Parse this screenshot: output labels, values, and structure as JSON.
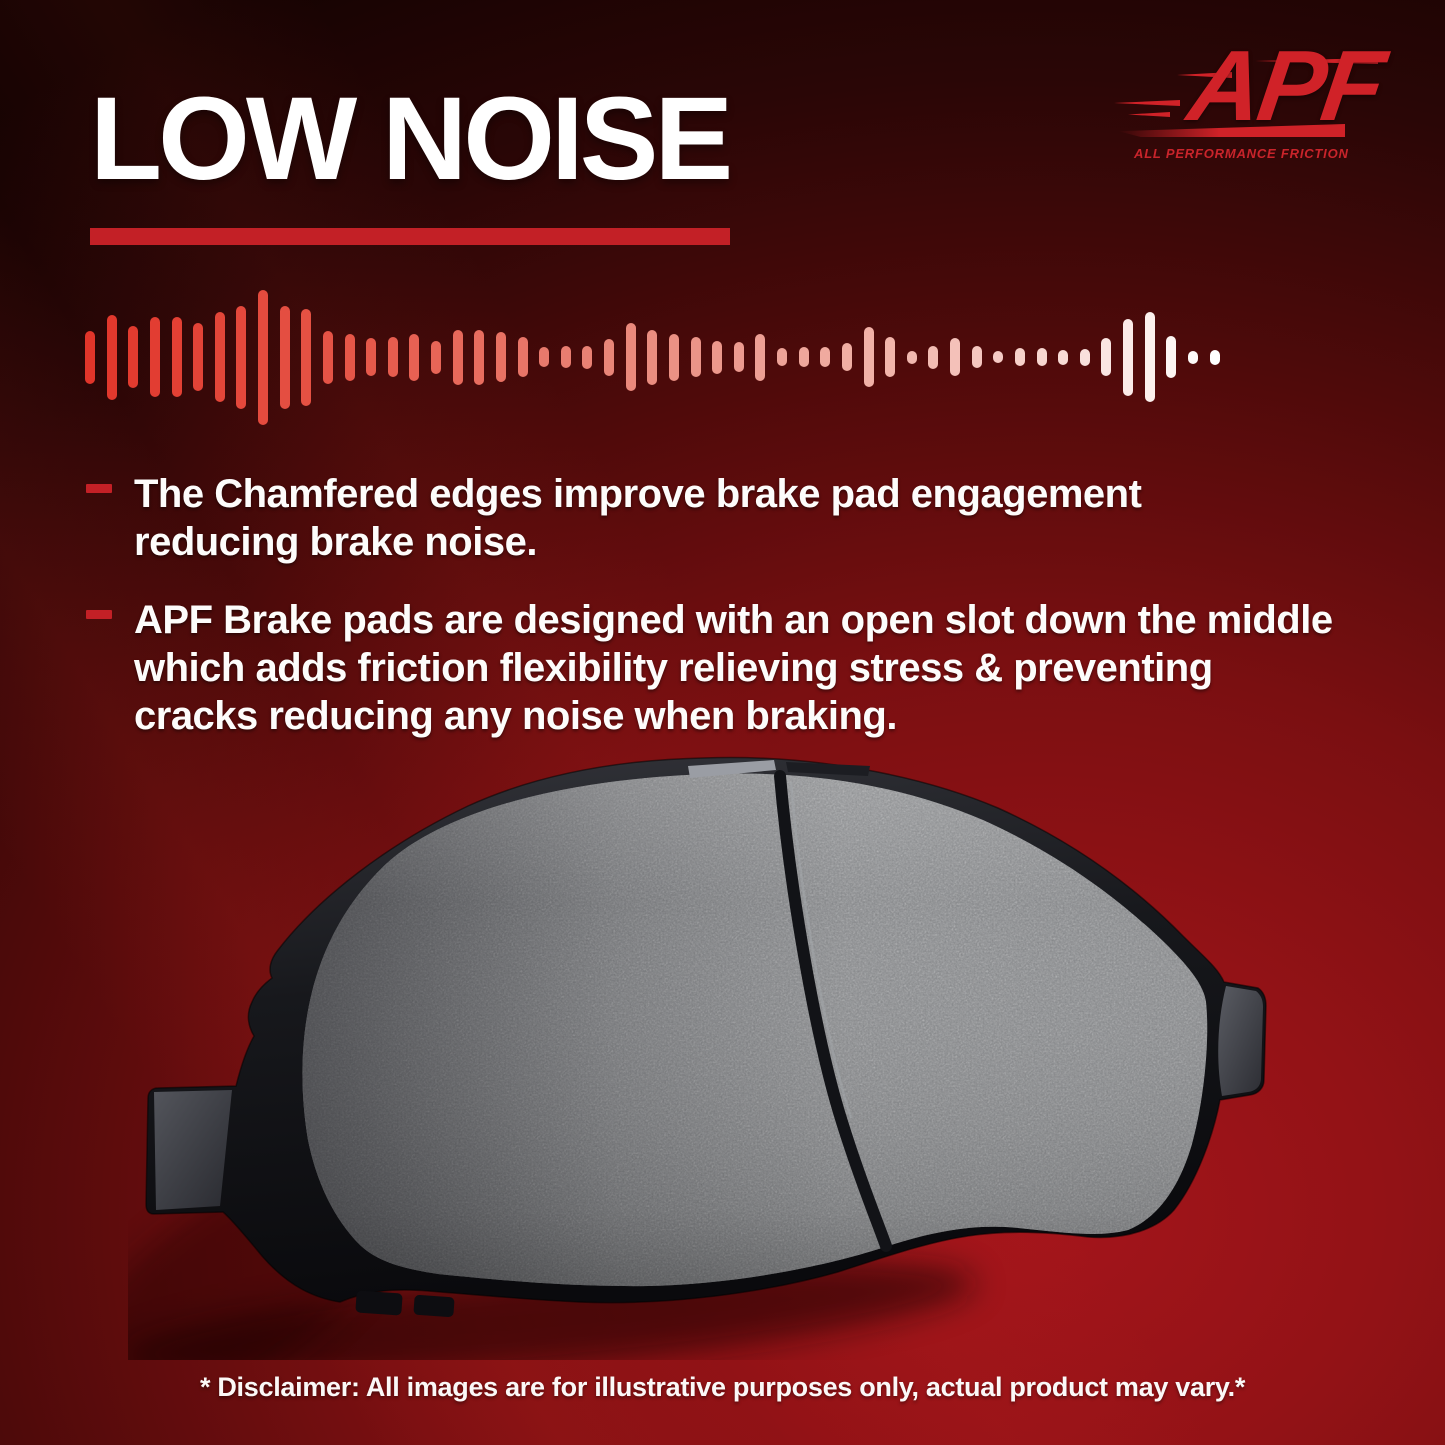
{
  "header": {
    "title": "LOW NOISE"
  },
  "logo": {
    "brand": "APF",
    "tagline": "ALL PERFORMANCE FRICTION"
  },
  "bullets": [
    {
      "text": "The Chamfered edges improve brake pad engagement\nreducing brake noise."
    },
    {
      "text": "APF Brake pads are designed with an open slot down the middle\nwhich adds friction flexibility relieving stress & preventing\n cracks reducing any noise when braking."
    }
  ],
  "waveform": {
    "heights": [
      53,
      85,
      62,
      80,
      80,
      68,
      90,
      103,
      135,
      103,
      97,
      53,
      47,
      38,
      40,
      47,
      33,
      55,
      55,
      50,
      40,
      20,
      22,
      23,
      37,
      68,
      55,
      47,
      40,
      33,
      30,
      47,
      18,
      20,
      20,
      28,
      60,
      40,
      13,
      23,
      38,
      22,
      12,
      18,
      18,
      15,
      17,
      38,
      77,
      90,
      42,
      13,
      15
    ],
    "color_stops": [
      "#e1352a",
      "#e6594b",
      "#ea8d80",
      "#f3bcb3",
      "#ffffff"
    ]
  },
  "disclaimer": {
    "text": "* Disclaimer: All images are for illustrative purposes only, actual product may vary.*"
  },
  "icons": {
    "bullet_marker": "red-dash",
    "soundwave": "vertical-bars",
    "logo_speed_lines": "tapered-red-streaks"
  },
  "colors": {
    "accent_red": "#c32026",
    "logo_red": "#d02228",
    "text_white": "#ffffff",
    "background_dark": "#150302",
    "background_red": "#9c1115",
    "pad_friction_grey": "#87898c",
    "pad_plate_black": "#131418"
  }
}
